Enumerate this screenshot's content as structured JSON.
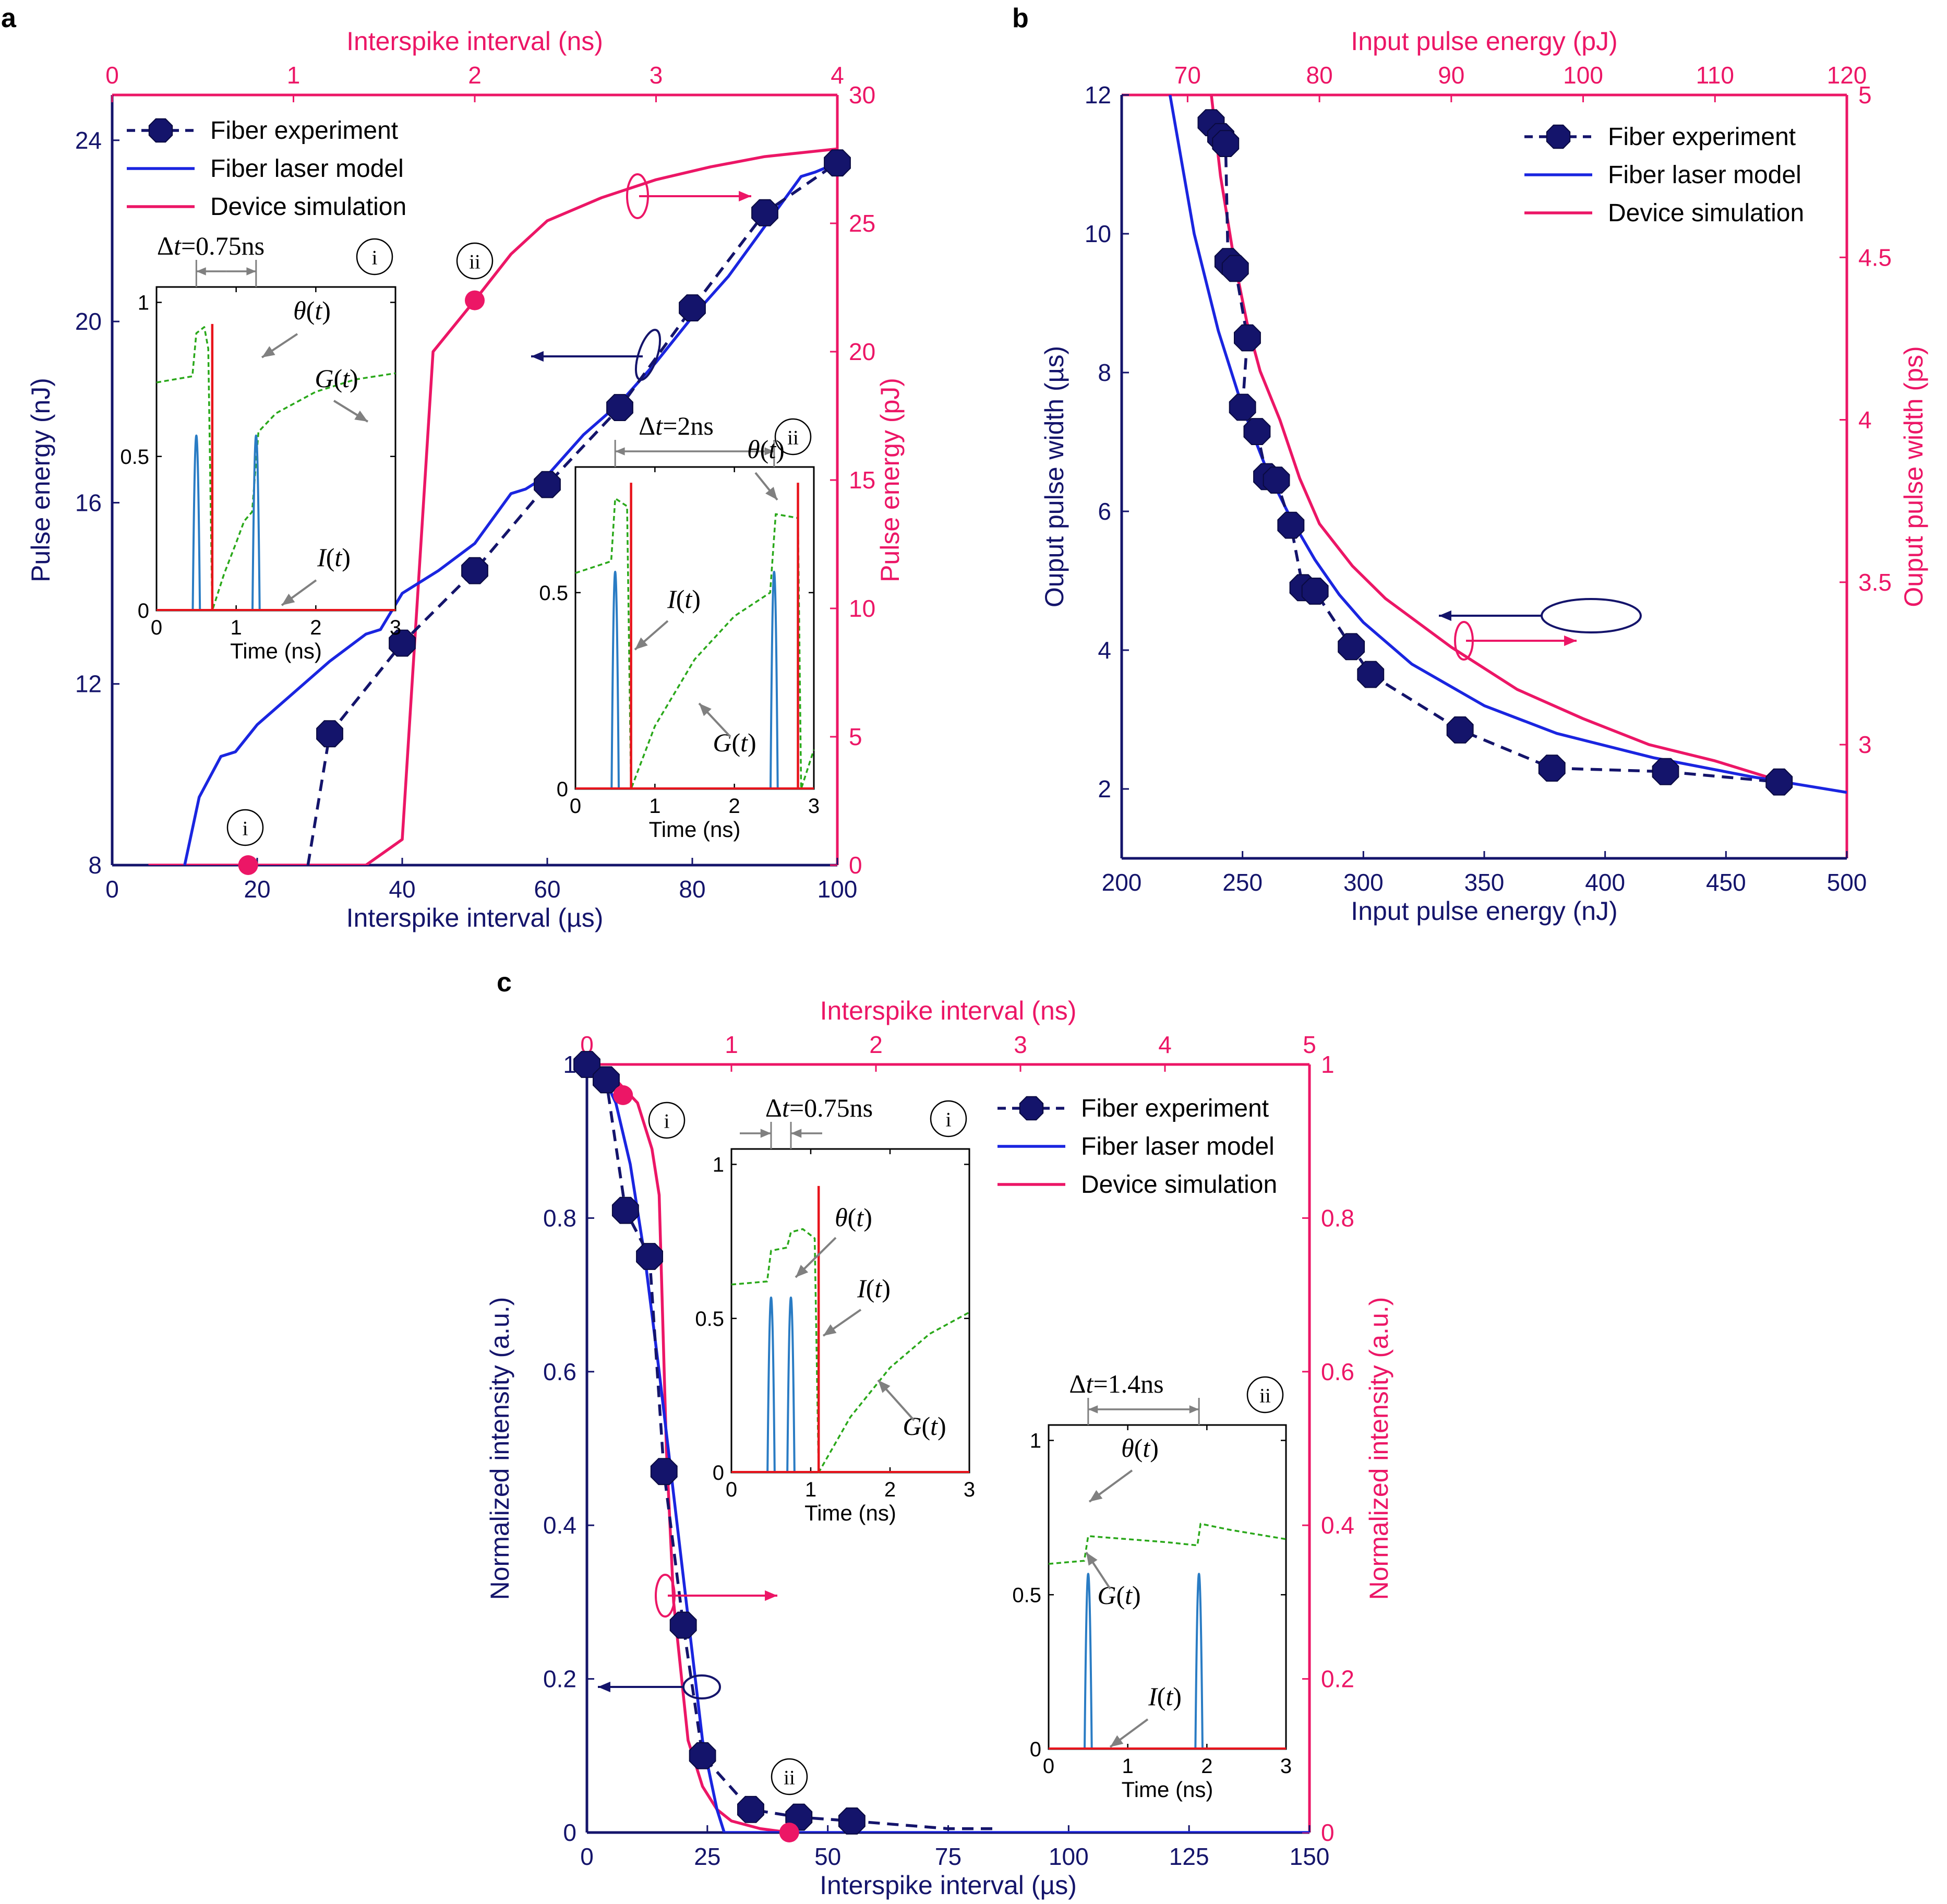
{
  "colors": {
    "navy": "#14146b",
    "blue": "#1a25e0",
    "pink": "#ec1666",
    "gray": "#808080",
    "inset_blue": "#2a7cc4",
    "inset_red": "#e8141c",
    "inset_green": "#2aa81a"
  },
  "chart_data": [
    {
      "panel": "a",
      "type": "line",
      "xlabel": "Interspike interval (µs)",
      "ylabel": "Pulse energy (nJ)",
      "x2label": "Interspike interval (ns)",
      "y2label": "Pulse energy (pJ)",
      "xlim": [
        0,
        100
      ],
      "ylim": [
        8,
        25
      ],
      "x2lim": [
        0,
        4
      ],
      "y2lim": [
        0,
        30
      ],
      "xticks": [
        0,
        20,
        40,
        60,
        80,
        100
      ],
      "yticks": [
        8,
        12,
        16,
        20,
        24
      ],
      "x2ticks": [
        0,
        1,
        2,
        3,
        4
      ],
      "y2ticks": [
        0,
        5,
        10,
        15,
        20,
        25,
        30
      ],
      "legend": [
        "Fiber experiment",
        "Fiber laser model",
        "Device simulation"
      ],
      "legend_position": "top-left",
      "series": [
        {
          "name": "Fiber experiment",
          "axis": "primary",
          "style": "dashed-markers",
          "x": [
            27,
            30,
            40,
            50,
            60,
            70,
            80,
            90,
            100
          ],
          "y": [
            8,
            10.9,
            12.9,
            14.5,
            16.4,
            18.1,
            20.3,
            22.4,
            23.5
          ]
        },
        {
          "name": "Fiber laser model",
          "axis": "primary",
          "style": "solid",
          "x": [
            10,
            12,
            15,
            17,
            20,
            25,
            30,
            35,
            37,
            40,
            45,
            50,
            55,
            57,
            60,
            65,
            70,
            75,
            80,
            85,
            90,
            95,
            97,
            100
          ],
          "y": [
            8,
            9.5,
            10.4,
            10.5,
            11.1,
            11.8,
            12.5,
            13.1,
            13.2,
            14.0,
            14.5,
            15.1,
            16.2,
            16.3,
            16.6,
            17.5,
            18.2,
            19.1,
            20.1,
            21.0,
            22.1,
            23.2,
            23.3,
            23.5
          ]
        },
        {
          "name": "Device simulation",
          "axis": "secondary",
          "style": "solid",
          "x": [
            0.2,
            0.7,
            1.4,
            1.6,
            1.77,
            2.0,
            2.2,
            2.4,
            2.7,
            3.0,
            3.3,
            3.6,
            4.0
          ],
          "y": [
            0,
            0,
            0,
            1,
            20,
            22,
            23.8,
            25.1,
            26.0,
            26.7,
            27.2,
            27.6,
            27.9
          ]
        }
      ],
      "annotations": [
        {
          "label": "ⓘ",
          "axis": "secondary",
          "x": 0.75,
          "y": 0
        },
        {
          "label": "ⓘⓘ",
          "axis": "secondary",
          "x": 2.0,
          "y": 22
        }
      ],
      "axis_markers": [
        "left arrow: primary axis",
        "right arrow: secondary axis"
      ],
      "insets": [
        {
          "id": "i",
          "badge": "i",
          "dt_label": "Δt=0.75ns",
          "dt_prefix": "Δ",
          "dt_var": "t",
          "dt_value": "=0.75ns",
          "xlabel": "Time (ns)",
          "xticks": [
            0,
            1,
            2,
            3
          ],
          "yticks": [
            0,
            0.5,
            1
          ],
          "labels": {
            "theta": "θ(t)",
            "G": "G(t)",
            "I": "I(t)"
          },
          "spikes": [
            0.5,
            1.25
          ],
          "red_spike": 0.7,
          "green": [
            [
              0,
              0.74
            ],
            [
              0.45,
              0.76
            ],
            [
              0.5,
              0.9
            ],
            [
              0.6,
              0.92
            ],
            [
              0.65,
              0.85
            ],
            [
              0.7,
              0
            ],
            [
              0.85,
              0.12
            ],
            [
              1.0,
              0.22
            ],
            [
              1.1,
              0.29
            ],
            [
              1.2,
              0.32
            ],
            [
              1.28,
              0.58
            ],
            [
              1.5,
              0.64
            ],
            [
              2.0,
              0.71
            ],
            [
              2.5,
              0.75
            ],
            [
              3.0,
              0.77
            ]
          ]
        },
        {
          "id": "ii",
          "badge": "ii",
          "dt_label": "Δt=2ns",
          "dt_prefix": "Δ",
          "dt_var": "t",
          "dt_value": "=2ns",
          "xlabel": "Time (ns)",
          "xticks": [
            0,
            1,
            2,
            3
          ],
          "yticks": [
            0,
            0.5
          ],
          "labels": {
            "theta": "θ(t)",
            "G": "G(t)",
            "I": "I(t)"
          },
          "spikes": [
            0.5,
            2.5
          ],
          "red_spike": 0.7,
          "red_spike2": 2.8,
          "green": [
            [
              0,
              0.55
            ],
            [
              0.45,
              0.58
            ],
            [
              0.5,
              0.74
            ],
            [
              0.65,
              0.72
            ],
            [
              0.7,
              0
            ],
            [
              1.0,
              0.16
            ],
            [
              1.5,
              0.33
            ],
            [
              2.0,
              0.44
            ],
            [
              2.45,
              0.5
            ],
            [
              2.52,
              0.7
            ],
            [
              2.8,
              0.69
            ],
            [
              2.84,
              0
            ],
            [
              3.0,
              0.1
            ]
          ]
        }
      ]
    },
    {
      "panel": "b",
      "type": "line",
      "xlabel": "Input pulse energy (nJ)",
      "ylabel": "Ouput pulse width (µs)",
      "x2label": "Input pulse energy (pJ)",
      "y2label": "Ouput pulse width (ps)",
      "xlim": [
        200,
        500
      ],
      "ylim": [
        1,
        12
      ],
      "x2lim": [
        65,
        120
      ],
      "y2lim": [
        2.65,
        5
      ],
      "xticks": [
        200,
        250,
        300,
        350,
        400,
        450,
        500
      ],
      "yticks": [
        2,
        4,
        6,
        8,
        10,
        12
      ],
      "x2ticks": [
        70,
        80,
        90,
        100,
        110,
        120
      ],
      "y2ticks": [
        3,
        3.5,
        4,
        4.5,
        5
      ],
      "legend": [
        "Fiber experiment",
        "Fiber laser model",
        "Device simulation"
      ],
      "legend_position": "top-right",
      "series": [
        {
          "name": "Fiber experiment",
          "axis": "primary",
          "style": "dashed-markers",
          "x": [
            237,
            241,
            243,
            244,
            247,
            252,
            250,
            256,
            260,
            264,
            270,
            275,
            280,
            295,
            303,
            340,
            378,
            425,
            472
          ],
          "y": [
            11.6,
            11.4,
            11.3,
            9.6,
            9.5,
            8.5,
            7.5,
            7.15,
            6.5,
            6.45,
            5.8,
            4.9,
            4.85,
            4.05,
            3.65,
            2.85,
            2.3,
            2.25,
            2.1
          ]
        },
        {
          "name": "Fiber laser model",
          "axis": "primary",
          "style": "solid",
          "x": [
            220,
            230,
            240,
            250,
            260,
            270,
            280,
            290,
            300,
            320,
            350,
            380,
            420,
            460,
            500
          ],
          "y": [
            12,
            10.0,
            8.6,
            7.5,
            6.6,
            5.9,
            5.3,
            4.8,
            4.4,
            3.8,
            3.2,
            2.8,
            2.45,
            2.18,
            1.95
          ]
        },
        {
          "name": "Device simulation",
          "axis": "secondary",
          "style": "solid",
          "x": [
            71.8,
            72.5,
            73.5,
            74.5,
            75.5,
            77,
            78.5,
            80,
            82.5,
            85,
            90,
            95,
            100,
            105,
            110,
            114
          ],
          "y": [
            5.0,
            4.75,
            4.5,
            4.3,
            4.15,
            4.0,
            3.82,
            3.68,
            3.55,
            3.45,
            3.3,
            3.17,
            3.08,
            3.0,
            2.95,
            2.9
          ]
        }
      ],
      "axis_markers": [
        "left arrow: primary axis",
        "right arrow: secondary axis"
      ]
    },
    {
      "panel": "c",
      "type": "line",
      "xlabel": "Interspike interval (µs)",
      "ylabel": "Normalized intensity (a.u.)",
      "x2label": "Interspike interval (ns)",
      "y2label": "Normalized intensity (a.u.)",
      "xlim": [
        0,
        150
      ],
      "ylim": [
        0,
        1
      ],
      "x2lim": [
        0,
        5
      ],
      "y2lim": [
        0,
        1
      ],
      "xticks": [
        0,
        25,
        50,
        75,
        100,
        125,
        150
      ],
      "yticks": [
        0,
        0.2,
        0.4,
        0.6,
        0.8,
        1
      ],
      "x2ticks": [
        0,
        1,
        2,
        3,
        4,
        5
      ],
      "y2ticks": [
        0,
        0.2,
        0.4,
        0.6,
        0.8,
        1
      ],
      "legend": [
        "Fiber experiment",
        "Fiber laser model",
        "Device simulation"
      ],
      "legend_position": "top-right",
      "series": [
        {
          "name": "Fiber experiment",
          "axis": "primary",
          "style": "dashed-markers",
          "x": [
            0,
            4,
            8,
            13,
            16,
            20,
            24,
            34,
            44,
            55,
            65,
            75,
            85
          ],
          "y": [
            1.0,
            0.98,
            0.81,
            0.75,
            0.47,
            0.27,
            0.1,
            0.03,
            0.02,
            0.015,
            0.01,
            0.005,
            0.005
          ]
        },
        {
          "name": "Fiber laser model",
          "axis": "primary",
          "style": "solid",
          "x": [
            0,
            3,
            6,
            9,
            12,
            15,
            18,
            21,
            24,
            27,
            28.5,
            30,
            150
          ],
          "y": [
            1.0,
            0.99,
            0.95,
            0.87,
            0.75,
            0.6,
            0.44,
            0.28,
            0.12,
            0.03,
            0,
            0,
            0
          ]
        },
        {
          "name": "Device simulation",
          "axis": "secondary",
          "style": "solid",
          "x": [
            0.05,
            0.15,
            0.25,
            0.35,
            0.45,
            0.5,
            0.55,
            0.6,
            0.7,
            0.8,
            0.9,
            1.0,
            1.2,
            1.4
          ],
          "y": [
            1.0,
            0.99,
            0.97,
            0.95,
            0.89,
            0.83,
            0.5,
            0.3,
            0.12,
            0.06,
            0.03,
            0.015,
            0.005,
            0
          ]
        }
      ],
      "annotations": [
        {
          "label": "ⓘ",
          "axis": "secondary",
          "x": 0.25,
          "y": 0.96
        },
        {
          "label": "ⓘⓘ",
          "axis": "secondary",
          "x": 1.4,
          "y": 0
        }
      ],
      "axis_markers": [
        "left arrow: primary axis",
        "right arrow: secondary axis"
      ],
      "insets": [
        {
          "id": "i",
          "badge": "i",
          "dt_label": "Δt=0.75ns",
          "dt_prefix": "Δ",
          "dt_var": "t",
          "dt_value": "=0.75ns",
          "xlabel": "Time (ns)",
          "xticks": [
            0,
            1,
            2,
            3
          ],
          "yticks": [
            0,
            0.5,
            1
          ],
          "labels": {
            "theta": "θ(t)",
            "G": "G(t)",
            "I": "I(t)"
          },
          "spikes": [
            0.5,
            0.75
          ],
          "red_spike": 1.1,
          "green": [
            [
              0,
              0.61
            ],
            [
              0.45,
              0.62
            ],
            [
              0.5,
              0.72
            ],
            [
              0.7,
              0.73
            ],
            [
              0.75,
              0.78
            ],
            [
              0.9,
              0.79
            ],
            [
              1.05,
              0.76
            ],
            [
              1.1,
              0
            ],
            [
              1.5,
              0.18
            ],
            [
              2.0,
              0.34
            ],
            [
              2.5,
              0.45
            ],
            [
              3.0,
              0.52
            ]
          ]
        },
        {
          "id": "ii",
          "badge": "ii",
          "dt_label": "Δt=1.4ns",
          "dt_prefix": "Δ",
          "dt_var": "t",
          "dt_value": "=1.4ns",
          "xlabel": "Time (ns)",
          "xticks": [
            0,
            1,
            2,
            3
          ],
          "yticks": [
            0,
            0.5,
            1
          ],
          "labels": {
            "theta": "θ(t)",
            "G": "G(t)",
            "I": "I(t)"
          },
          "spikes": [
            0.5,
            1.9
          ],
          "red_spike": null,
          "green": [
            [
              0,
              0.6
            ],
            [
              0.45,
              0.61
            ],
            [
              0.5,
              0.69
            ],
            [
              1.0,
              0.68
            ],
            [
              1.5,
              0.67
            ],
            [
              1.88,
              0.66
            ],
            [
              1.92,
              0.73
            ],
            [
              2.3,
              0.71
            ],
            [
              3.0,
              0.68
            ]
          ]
        }
      ]
    }
  ]
}
